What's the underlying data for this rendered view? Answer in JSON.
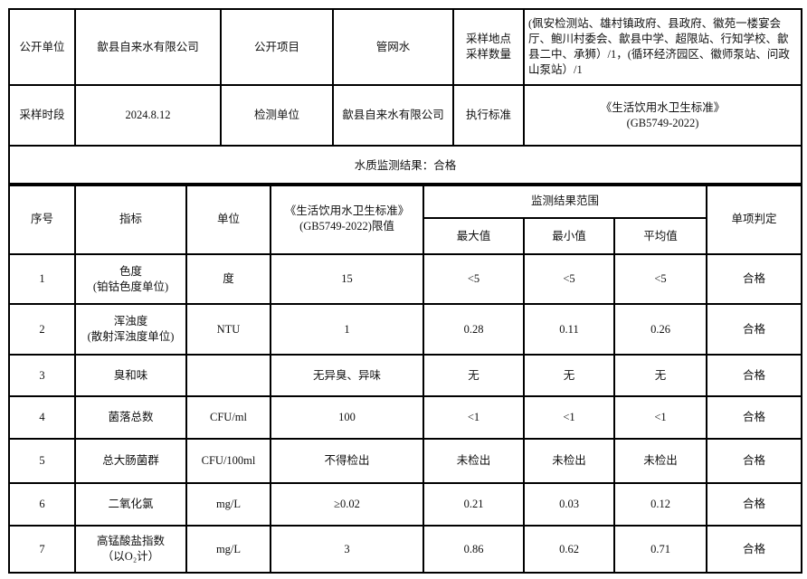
{
  "header": {
    "publisher_label": "公开单位",
    "publisher_value": "歙县自来水有限公司",
    "item_label": "公开项目",
    "item_value": "管网水",
    "site_label_1": "采样地点",
    "site_label_2": "采样数量",
    "site_value": "(佩安检测站、雄村镇政府、县政府、徽苑一楼宴会厅、鲍川村委会、歙县中学、超限站、行知学校、歙县二中、承狮）/1，(循环经济园区、徽师泵站、问政山泵站）/1",
    "time_label": "采样时段",
    "time_value": "2024.8.12",
    "lab_label": "检测单位",
    "lab_value": "歙县自来水有限公司",
    "standard_label": "执行标准",
    "standard_value_1": "《生活饮用水卫生标准》",
    "standard_value_2": "(GB5749-2022)",
    "result_summary": "水质监测结果：合格"
  },
  "columns": {
    "no": "序号",
    "indicator": "指标",
    "unit": "单位",
    "limit_1": "《生活饮用水卫生标准》",
    "limit_2": "(GB5749-2022)限值",
    "range": "监测结果范围",
    "max": "最大值",
    "min": "最小值",
    "avg": "平均值",
    "verdict": "单项判定"
  },
  "rows": [
    {
      "no": "1",
      "name": "色度",
      "name2": "(铂钴色度单位)",
      "unit": "度",
      "limit": "15",
      "max": "<5",
      "min": "<5",
      "avg": "<5",
      "verdict": "合格"
    },
    {
      "no": "2",
      "name": "浑浊度",
      "name2": "(散射浑浊度单位)",
      "unit": "NTU",
      "limit": "1",
      "max": "0.28",
      "min": "0.11",
      "avg": "0.26",
      "verdict": "合格"
    },
    {
      "no": "3",
      "name": "臭和味",
      "name2": "",
      "unit": "",
      "limit": "无异臭、异味",
      "max": "无",
      "min": "无",
      "avg": "无",
      "verdict": "合格"
    },
    {
      "no": "4",
      "name": "菌落总数",
      "name2": "",
      "unit": "CFU/ml",
      "limit": "100",
      "max": "<1",
      "min": "<1",
      "avg": "<1",
      "verdict": "合格"
    },
    {
      "no": "5",
      "name": "总大肠菌群",
      "name2": "",
      "unit": "CFU/100ml",
      "limit": "不得检出",
      "max": "未检出",
      "min": "未检出",
      "avg": "未检出",
      "verdict": "合格"
    },
    {
      "no": "6",
      "name": "二氧化氯",
      "name2": "",
      "unit": "mg/L",
      "limit": "≥0.02",
      "max": "0.21",
      "min": "0.03",
      "avg": "0.12",
      "verdict": "合格"
    },
    {
      "no": "7",
      "name": "高锰酸盐指数",
      "name2": "（以O₂计）",
      "unit": "mg/L",
      "limit": "3",
      "max": "0.86",
      "min": "0.62",
      "avg": "0.71",
      "verdict": "合格"
    }
  ]
}
